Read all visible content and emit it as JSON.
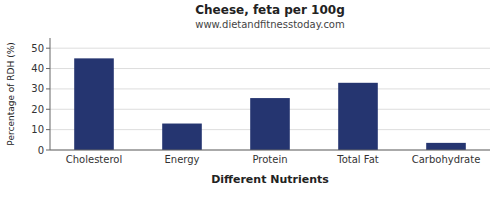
{
  "chart_data": {
    "type": "bar",
    "title": "Cheese, feta per 100g",
    "subtitle": "www.dietandfitnesstoday.com",
    "xlabel": "Different Nutrients",
    "ylabel": "Percentage of RDH (%)",
    "categories": [
      "Cholesterol",
      "Energy",
      "Protein",
      "Total Fat",
      "Carbohydrate"
    ],
    "values": [
      45,
      13,
      25.5,
      33,
      3.5
    ],
    "color": "#253570",
    "ylim": [
      0,
      55
    ],
    "yticks": [
      0,
      10,
      20,
      30,
      40,
      50
    ],
    "grid": true
  }
}
